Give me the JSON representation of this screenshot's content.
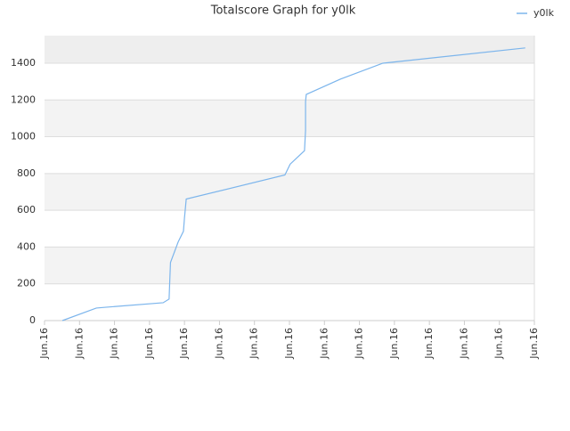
{
  "chart_data": {
    "type": "line",
    "title": "Totalscore Graph for y0lk",
    "x": [
      0.51,
      1.48,
      1.78,
      3.39,
      3.56,
      3.58,
      3.6,
      3.82,
      3.97,
      4.0,
      4.05,
      6.87,
      7.02,
      7.43,
      7.46,
      7.46,
      7.48,
      8.45,
      9.67,
      13.74
    ],
    "series": [
      {
        "name": "y0lk",
        "color": "#7cb5ec",
        "values": [
          0,
          68,
          73,
          97,
          117,
          219,
          316,
          428,
          486,
          559,
          661,
          792,
          851,
          924,
          1035,
          1191,
          1230,
          1313,
          1400,
          1483
        ]
      }
    ],
    "xlim": [
      0,
      14
    ],
    "xticks": [
      {
        "value": 0,
        "label": "Jun.16"
      },
      {
        "value": 1,
        "label": "Jun.16"
      },
      {
        "value": 2,
        "label": "Jun.16"
      },
      {
        "value": 3,
        "label": "Jun.16"
      },
      {
        "value": 4,
        "label": "Jun.16"
      },
      {
        "value": 5,
        "label": "Jun.16"
      },
      {
        "value": 6,
        "label": "Jun.16"
      },
      {
        "value": 7,
        "label": "Jun.16"
      },
      {
        "value": 8,
        "label": "Jun.16"
      },
      {
        "value": 9,
        "label": "Jun.16"
      },
      {
        "value": 10,
        "label": "Jun.16"
      },
      {
        "value": 11,
        "label": "Jun.16"
      },
      {
        "value": 12,
        "label": "Jun.16"
      },
      {
        "value": 13,
        "label": "Jun.16"
      },
      {
        "value": 14,
        "label": "Jun.16"
      }
    ],
    "ylim": [
      0,
      1550
    ],
    "yticks": [
      0,
      200,
      400,
      600,
      800,
      1000,
      1200,
      1400
    ],
    "grid": true,
    "legend": "top-right"
  }
}
